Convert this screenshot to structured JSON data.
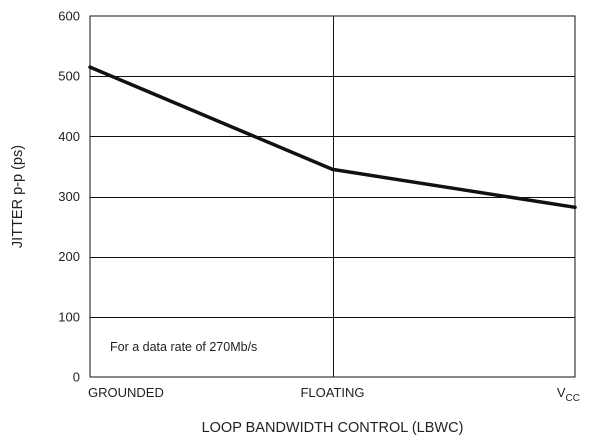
{
  "chart_data": {
    "type": "line",
    "xlabel": "LOOP BANDWIDTH CONTROL (LBWC)",
    "ylabel": "JITTER p-p (ps)",
    "categories": [
      {
        "text": "GROUNDED",
        "sub": ""
      },
      {
        "text": "FLOATING",
        "sub": ""
      },
      {
        "text": "V",
        "sub": "CC"
      }
    ],
    "ylim": [
      0,
      600
    ],
    "yticks": [
      0,
      100,
      200,
      300,
      400,
      500,
      600
    ],
    "series": [
      {
        "values": [
          515,
          345,
          282
        ]
      }
    ],
    "annotation": "For a data rate of 270Mb/s",
    "grid": true,
    "line_color": "#111111",
    "grid_color": "#111111"
  }
}
